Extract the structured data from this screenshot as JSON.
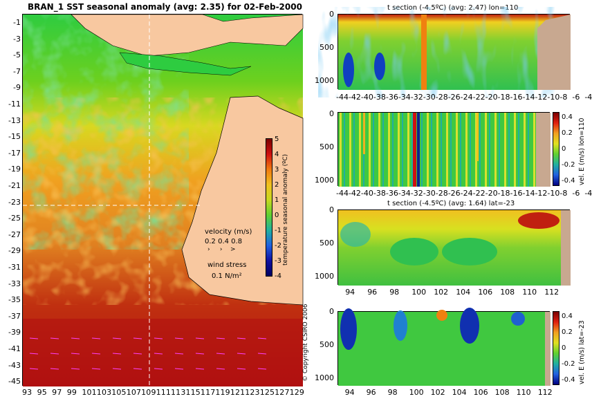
{
  "map": {
    "title": "BRAN_1 SST seasonal anomaly (avg: 2.35) for 02-Feb-2000",
    "lat_ticks": [
      "-1",
      "-3",
      "-5",
      "-7",
      "-9",
      "-11",
      "-13",
      "-15",
      "-17",
      "-19",
      "-21",
      "-23",
      "-25",
      "-27",
      "-29",
      "-31",
      "-33",
      "-35",
      "-37",
      "-39",
      "-41",
      "-43",
      "-45"
    ],
    "lon_ticks": [
      "93",
      "95",
      "97",
      "99",
      "101",
      "103",
      "105",
      "107",
      "109",
      "111",
      "113",
      "115",
      "117",
      "119",
      "121",
      "123",
      "125",
      "127",
      "129"
    ],
    "lon_tick_text": "93  95  97  99  101103105107109111113115117119121123125127129",
    "colorbar_ticks": [
      "5",
      "4",
      "3",
      "2",
      "1",
      "0",
      "-1",
      "-2",
      "-3",
      "-4"
    ],
    "colorbar_label": "temperature seasonal anomaly (ºC)",
    "velocity_label": "velocity (m/s)",
    "velocity_scale": "0.2 0.4 0.8",
    "wind_label": "wind stress",
    "wind_scale": "0.1 N/m²",
    "copyright": "© Copyright CSIRO 2006"
  },
  "sections": [
    {
      "title": "t section (-4.5ºC) (avg: 2.47) lon=110",
      "y_ticks": [
        "0",
        "500",
        "1000"
      ],
      "x_ticks": [
        "-44",
        "-42",
        "-40",
        "-38",
        "-36",
        "-34",
        "-32",
        "-30",
        "-28",
        "-26",
        "-24",
        "-22",
        "-20",
        "-18",
        "-16",
        "-14",
        "-12",
        "-10",
        "-8",
        "-6",
        "-4"
      ],
      "x_tick_text": "-44-42-40-38-36-34-32-30-28-26-24-22-20-18-16-14-12-10-8  -6  -4"
    },
    {
      "title": "",
      "y_ticks": [
        "0",
        "500",
        "1000"
      ],
      "x_ticks": [
        "-44",
        "-42",
        "-40",
        "-38",
        "-36",
        "-34",
        "-32",
        "-30",
        "-28",
        "-26",
        "-24",
        "-22",
        "-20",
        "-18",
        "-16",
        "-14",
        "-12",
        "-10",
        "-8",
        "-6",
        "-4"
      ],
      "x_tick_text": "-44-42-40-38-36-34-32-30-28-26-24-22-20-18-16-14-12-10-8  -6  -4",
      "cbar_ticks": [
        "0.4",
        "0.2",
        "0",
        "-0.2",
        "-0.4"
      ],
      "cbar_label": "vel. E (m/s) lon=110"
    },
    {
      "title": "t section (-4.5ºC) (avg: 1.64) lat=-23",
      "y_ticks": [
        "0",
        "500",
        "1000"
      ],
      "x_ticks": [
        "94",
        "96",
        "98",
        "100",
        "102",
        "104",
        "106",
        "108",
        "110",
        "112"
      ]
    },
    {
      "title": "",
      "y_ticks": [
        "0",
        "500",
        "1000"
      ],
      "x_ticks": [
        "94",
        "96",
        "98",
        "100",
        "102",
        "104",
        "106",
        "108",
        "110",
        "112"
      ],
      "cbar_ticks": [
        "0.4",
        "0.2",
        "0",
        "-0.2",
        "-0.4"
      ],
      "cbar_label": "vel. E (m/s) lat=-23"
    }
  ],
  "chart_data": [
    {
      "type": "heatmap",
      "title": "BRAN_1 SST seasonal anomaly (avg: 2.35) for 02-Feb-2000",
      "xlabel": "",
      "ylabel": "",
      "xlim": [
        93,
        130
      ],
      "ylim": [
        -45,
        0
      ],
      "colorbar": {
        "label": "temperature seasonal anomaly (ºC)",
        "range": [
          -4,
          5
        ]
      }
    },
    {
      "type": "heatmap",
      "title": "t section (-4.5ºC) (avg: 2.47) lon=110",
      "xlim": [
        -45,
        -3
      ],
      "ylim": [
        1050,
        0
      ]
    },
    {
      "type": "heatmap",
      "title": "",
      "xlim": [
        -45,
        -3
      ],
      "ylim": [
        1050,
        0
      ],
      "colorbar": {
        "label": "vel. E (m/s) lon=110",
        "range": [
          -0.4,
          0.45
        ]
      }
    },
    {
      "type": "heatmap",
      "title": "t section (-4.5ºC) (avg: 1.64) lat=-23",
      "xlim": [
        92.8,
        113.8
      ],
      "ylim": [
        1050,
        0
      ]
    },
    {
      "type": "heatmap",
      "title": "",
      "xlim": [
        92.8,
        113.8
      ],
      "ylim": [
        1050,
        0
      ],
      "colorbar": {
        "label": "vel. E (m/s) lat=-23",
        "range": [
          -0.4,
          0.45
        ]
      }
    }
  ]
}
